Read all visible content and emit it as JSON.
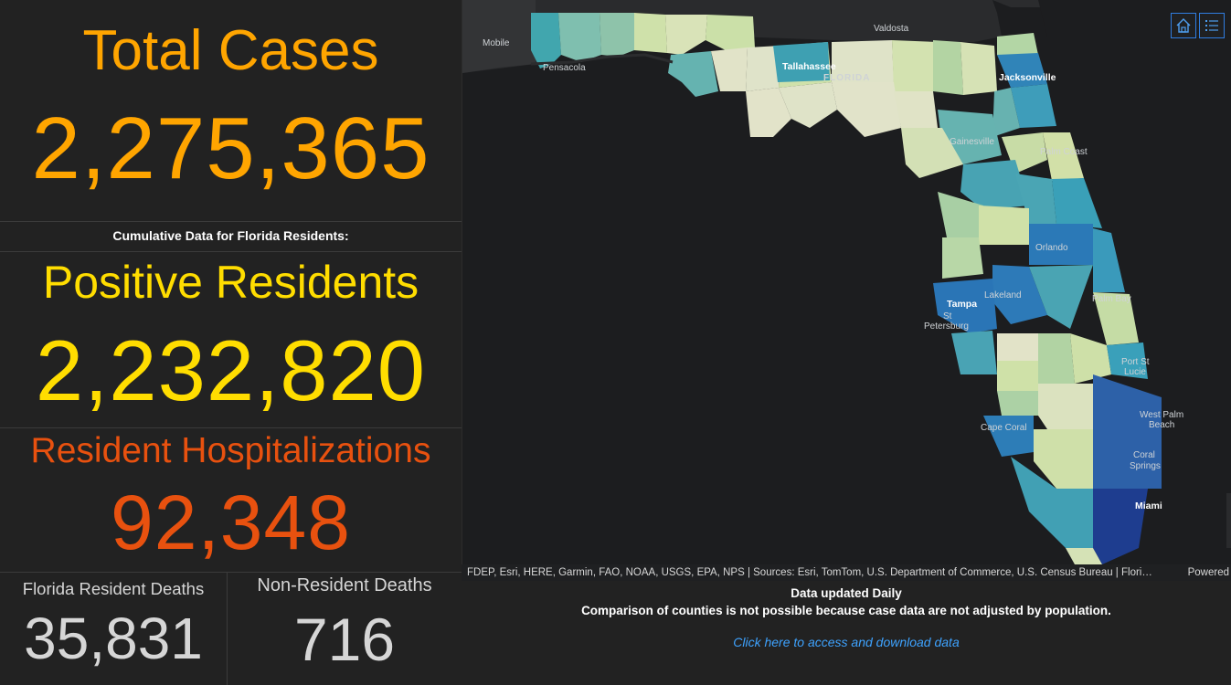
{
  "total_cases": {
    "title": "Total Cases",
    "value": "2,275,365"
  },
  "cumulative_label": "Cumulative Data for Florida Residents:",
  "positive_residents": {
    "title": "Positive Residents",
    "value": "2,232,820"
  },
  "hospitalizations": {
    "title": "Resident Hospitalizations",
    "value": "92,348"
  },
  "resident_deaths": {
    "title": "Florida Resident Deaths",
    "value": "35,831"
  },
  "nonresident_deaths": {
    "title": "Non-Resident Deaths",
    "value": "716"
  },
  "map": {
    "labels": {
      "mobile": "Mobile",
      "valdosta": "Valdosta",
      "pensacola": "Pensacola",
      "tallahassee": "Tallahassee",
      "florida": "FLORIDA",
      "jacksonville": "Jacksonville",
      "gainesville": "Gainesville",
      "palm_coast": "Palm Coast",
      "orlando": "Orlando",
      "lakeland": "Lakeland",
      "tampa": "Tampa",
      "st_petersburg_1": "St",
      "st_petersburg_2": "Petersburg",
      "palm_bay": "Palm Bay",
      "port_st_lucie_1": "Port St",
      "port_st_lucie_2": "Lucie",
      "west_palm_1": "West Palm",
      "west_palm_2": "Beach",
      "cape_coral": "Cape Coral",
      "coral_springs_1": "Coral",
      "coral_springs_2": "Springs",
      "miami": "Miami"
    },
    "attribution": "FDEP, Esri, HERE, Garmin, FAO, NOAA, USGS, EPA, NPS | Sources: Esri, TomTom, U.S. Department of Commerce, U.S. Census Bureau | Flori…",
    "powered_by": "Powered",
    "home_icon": "home-icon",
    "legend_icon": "legend-list-icon"
  },
  "footer": {
    "update_note": "Data updated Daily",
    "comparison_note": "Comparison of counties is not possible because case data are not adjusted by population.",
    "data_link": "Click here to access and download data"
  },
  "colors": {
    "total_cases": "#ffa500",
    "positive": "#ffdd00",
    "hospital": "#e8510f",
    "deaths": "#d6d6d6",
    "link": "#3ea3ff"
  }
}
